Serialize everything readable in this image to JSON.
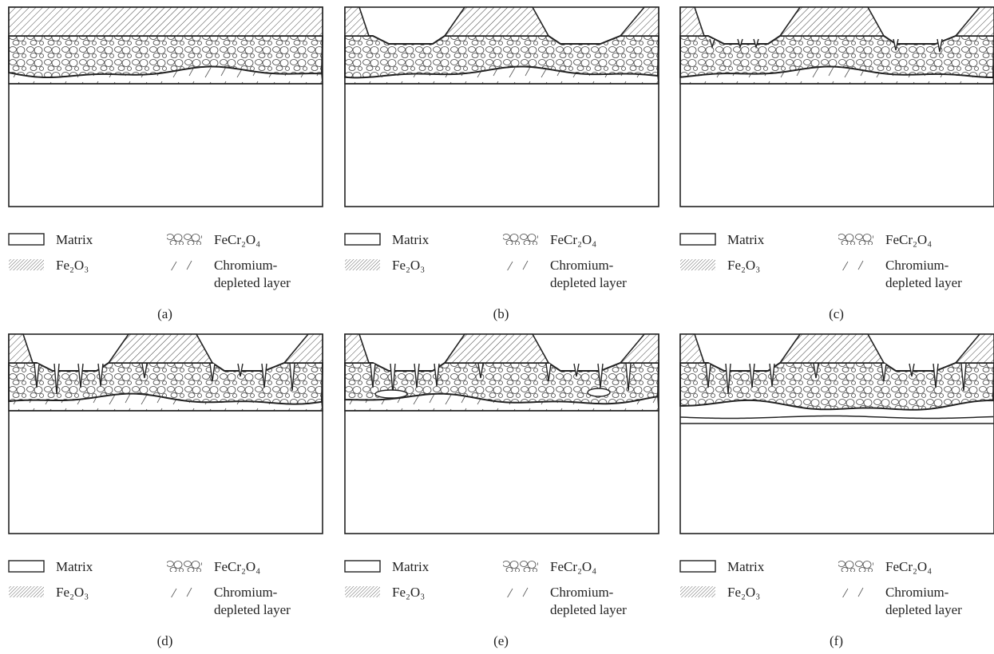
{
  "legend": {
    "matrix": "Matrix",
    "fe2o3": "Fe₂O₃",
    "fecr2o4": "FeCr₂O₄",
    "chromium": "Chromium-depleted layer"
  },
  "panels": [
    {
      "label": "(a)"
    },
    {
      "label": "(b)"
    },
    {
      "label": "(c)"
    },
    {
      "label": "(d)"
    },
    {
      "label": "(e)"
    },
    {
      "label": "(f)"
    }
  ]
}
